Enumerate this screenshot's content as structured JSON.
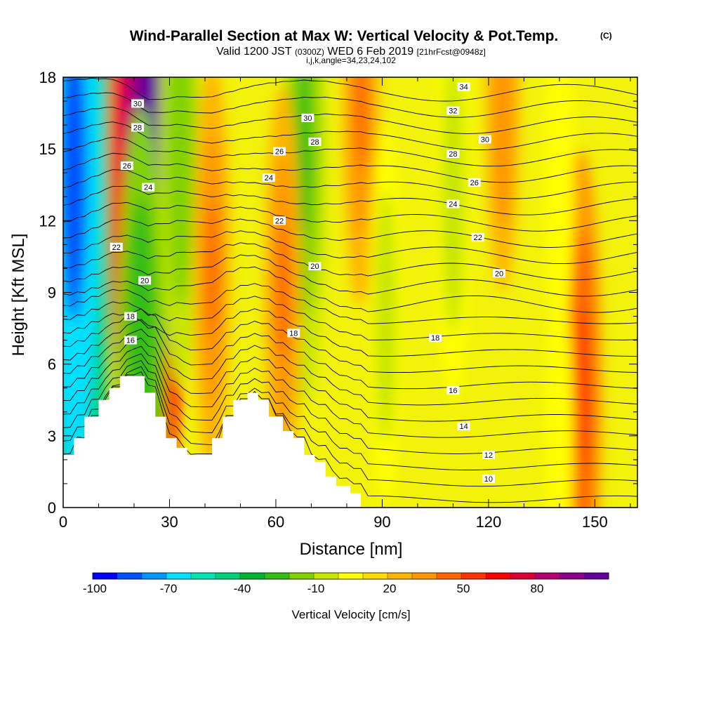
{
  "header": {
    "title": "Wind-Parallel Section at Max W: Vertical Velocity & Pot.Temp.",
    "title_suffix": "(C)",
    "valid_prefix": "Valid 1200 JST",
    "valid_z": "(0300Z)",
    "valid_date": "WED 6 Feb 2019",
    "valid_fcst": "[21hrFcst@0948z]",
    "indices": "i,j,k,angle=34,23,24,102"
  },
  "chart_data": {
    "type": "contour",
    "xlabel": "Distance [nm]",
    "ylabel": "Height [Kft MSL]",
    "xlim": [
      0,
      162
    ],
    "ylim": [
      0,
      18
    ],
    "xticks": [
      0,
      30,
      60,
      90,
      120,
      150
    ],
    "xtick_labels": [
      "0",
      "30",
      "60",
      "90",
      "120",
      "150"
    ],
    "yticks": [
      0,
      3,
      6,
      9,
      12,
      15,
      18
    ],
    "ytick_labels": [
      "0",
      "3",
      "6",
      "9",
      "12",
      "15",
      "18"
    ],
    "terrain": {
      "x": [
        0,
        3,
        3,
        6,
        6,
        10,
        10,
        13,
        13,
        16,
        16,
        23,
        23,
        26,
        26,
        29,
        29,
        32,
        32,
        35,
        35,
        42,
        42,
        45,
        45,
        48,
        48,
        52,
        52,
        55,
        55,
        58,
        58,
        62,
        62,
        65,
        65,
        68,
        68,
        71,
        71,
        74,
        74,
        77,
        77,
        81,
        81,
        84,
        84
      ],
      "y": [
        2.2,
        2.2,
        2.9,
        2.9,
        3.8,
        3.8,
        4.5,
        4.5,
        5.0,
        5.0,
        5.5,
        5.5,
        4.8,
        4.8,
        3.8,
        3.8,
        2.9,
        2.9,
        2.5,
        2.5,
        2.2,
        2.2,
        2.9,
        2.9,
        3.8,
        3.8,
        4.5,
        4.5,
        4.8,
        4.8,
        4.5,
        4.5,
        3.8,
        3.8,
        3.2,
        3.2,
        2.9,
        2.9,
        2.2,
        2.2,
        1.9,
        1.9,
        1.3,
        1.3,
        0.9,
        0.9,
        0.6,
        0.6,
        0
      ]
    },
    "vertical_velocity": {
      "name": "Vertical Velocity [cm/s]",
      "features": [
        {
          "kind": "downdraft",
          "x": 3,
          "y": 14,
          "peak": -100
        },
        {
          "kind": "updraft",
          "x": 24,
          "y": 15,
          "peak": 95
        },
        {
          "kind": "downdraft",
          "x": 33,
          "y": 15,
          "peak": -35
        },
        {
          "kind": "updraft",
          "x": 42,
          "y": 10,
          "peak": 25
        },
        {
          "kind": "downdraft",
          "x": 68,
          "y": 15,
          "peak": -40
        },
        {
          "kind": "updraft",
          "x": 62,
          "y": 9,
          "peak": 25
        },
        {
          "kind": "updraft",
          "x": 84,
          "y": 17,
          "peak": 25
        },
        {
          "kind": "downdraft",
          "x": 91,
          "y": 8,
          "peak": -20
        },
        {
          "kind": "downdraft",
          "x": 110,
          "y": 13,
          "peak": -25
        },
        {
          "kind": "updraft",
          "x": 146,
          "y": 5,
          "peak": 35
        },
        {
          "kind": "downdraft",
          "x": 140,
          "y": 14,
          "peak": -15
        },
        {
          "kind": "updraft",
          "x": 124,
          "y": 17,
          "peak": 20
        },
        {
          "kind": "downdraft",
          "x": 140,
          "y": 3,
          "peak": -12
        },
        {
          "kind": "downdraft",
          "x": 22,
          "y": 5.5,
          "peak": -45
        }
      ]
    },
    "potential_temperature": {
      "name": "Pot.Temp. (C)",
      "levels": [
        {
          "value": "10",
          "label_at": {
            "x": 120,
            "y": 1.2
          }
        },
        {
          "value": "12",
          "label_at": {
            "x": 120,
            "y": 2.2
          }
        },
        {
          "value": "14",
          "label_at": {
            "x": 113,
            "y": 3.4
          }
        },
        {
          "value": "16",
          "label_at": {
            "x": 110,
            "y": 4.9
          }
        },
        {
          "value": "18",
          "label_at": {
            "x": 65,
            "y": 7.3
          }
        },
        {
          "value": "18",
          "label_at": {
            "x": 105,
            "y": 7.1
          }
        },
        {
          "value": "20",
          "label_at": {
            "x": 71,
            "y": 10.1
          }
        },
        {
          "value": "20",
          "label_at": {
            "x": 123,
            "y": 9.8
          }
        },
        {
          "value": "22",
          "label_at": {
            "x": 61,
            "y": 12.0
          }
        },
        {
          "value": "22",
          "label_at": {
            "x": 117,
            "y": 11.3
          }
        },
        {
          "value": "24",
          "label_at": {
            "x": 58,
            "y": 13.8
          }
        },
        {
          "value": "24",
          "label_at": {
            "x": 110,
            "y": 12.7
          }
        },
        {
          "value": "26",
          "label_at": {
            "x": 61,
            "y": 14.9
          }
        },
        {
          "value": "26",
          "label_at": {
            "x": 116,
            "y": 13.6
          }
        },
        {
          "value": "28",
          "label_at": {
            "x": 71,
            "y": 15.3
          }
        },
        {
          "value": "28",
          "label_at": {
            "x": 110,
            "y": 14.8
          }
        },
        {
          "value": "30",
          "label_at": {
            "x": 69,
            "y": 16.3
          }
        },
        {
          "value": "30",
          "label_at": {
            "x": 119,
            "y": 15.4
          }
        },
        {
          "value": "32",
          "label_at": {
            "x": 110,
            "y": 16.6
          }
        },
        {
          "value": "34",
          "label_at": {
            "x": 113,
            "y": 17.6
          }
        },
        {
          "value": "16",
          "label_at": {
            "x": 19,
            "y": 7.0
          }
        },
        {
          "value": "18",
          "label_at": {
            "x": 19,
            "y": 8.0
          }
        },
        {
          "value": "20",
          "label_at": {
            "x": 23,
            "y": 9.5
          }
        },
        {
          "value": "22",
          "label_at": {
            "x": 15,
            "y": 10.9
          }
        },
        {
          "value": "26",
          "label_at": {
            "x": 18,
            "y": 14.3
          }
        },
        {
          "value": "24",
          "label_at": {
            "x": 24,
            "y": 13.4
          }
        },
        {
          "value": "28",
          "label_at": {
            "x": 21,
            "y": 15.9
          }
        },
        {
          "value": "30",
          "label_at": {
            "x": 21,
            "y": 16.9
          }
        }
      ]
    }
  },
  "colorbar": {
    "label": "Vertical Velocity [cm/s]",
    "ticks": [
      "-100",
      "-70",
      "-40",
      "-10",
      "20",
      "50",
      "80"
    ],
    "colors": [
      "#0000ff",
      "#0050ff",
      "#0096ff",
      "#00e1ff",
      "#00e6b4",
      "#00d278",
      "#00b432",
      "#32be14",
      "#82d200",
      "#c8e600",
      "#ffff00",
      "#ffdc00",
      "#ffb400",
      "#ff9600",
      "#ff6400",
      "#ff3200",
      "#ff0000",
      "#dc0032",
      "#b4006e",
      "#8c008c",
      "#64009c"
    ]
  }
}
